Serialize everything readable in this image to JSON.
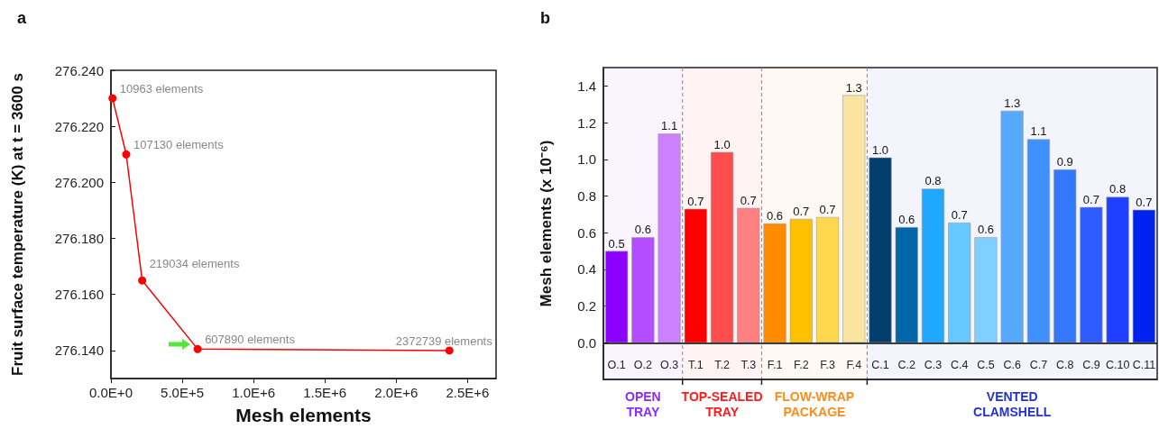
{
  "chart_data": [
    {
      "type": "line",
      "title": "a",
      "xlabel": "Mesh elements",
      "ylabel": "Fruit surface temperature (K) at t = 3600 s",
      "x": [
        10963,
        107130,
        219034,
        607890,
        2372739
      ],
      "series": [
        {
          "color": "#ff0000",
          "values": [
            276.23,
            276.21,
            276.165,
            276.1405,
            276.14
          ]
        }
      ],
      "annotations": [
        {
          "text": "10963 elements",
          "x": 10963,
          "y": 276.23
        },
        {
          "text": "107130 elements",
          "x": 107130,
          "y": 276.21
        },
        {
          "text": "219034 elements",
          "x": 219034,
          "y": 276.165
        },
        {
          "text": "607890 elements",
          "x": 607890,
          "y": 276.1405
        },
        {
          "text": "2372739 elements",
          "x": 2372739,
          "y": 276.14
        }
      ],
      "xlim": [
        0,
        2700000
      ],
      "xticks": [
        {
          "value": 0,
          "label": "0.0E+0"
        },
        {
          "value": 500000,
          "label": "5.0E+5"
        },
        {
          "value": 1000000,
          "label": "1.0E+6"
        },
        {
          "value": 1500000,
          "label": "1.5E+6"
        },
        {
          "value": 2000000,
          "label": "2.0E+6"
        },
        {
          "value": 2500000,
          "label": "2.5E+6"
        }
      ],
      "ylim": [
        276.13,
        276.24
      ],
      "yticks": [
        {
          "value": 276.14,
          "label": "276.140"
        },
        {
          "value": 276.16,
          "label": "276.160"
        },
        {
          "value": 276.18,
          "label": "276.180"
        },
        {
          "value": 276.2,
          "label": "276.200"
        },
        {
          "value": 276.22,
          "label": "276.220"
        },
        {
          "value": 276.24,
          "label": "276.240"
        }
      ],
      "marker": "circle",
      "line_style": "solid",
      "grid": false
    },
    {
      "type": "bar",
      "title": "b",
      "ylabel": "Mesh elements (x 10⁻⁶)",
      "categories": [
        "O.1",
        "O.2",
        "O.3",
        "T.1",
        "T.2",
        "T.3",
        "F.1",
        "F.2",
        "F.3",
        "F.4",
        "C.1",
        "C.2",
        "C.3",
        "C.4",
        "C.5",
        "C.6",
        "C.7",
        "C.8",
        "C.9",
        "C.10",
        "C.11"
      ],
      "values": [
        0.5,
        0.575,
        1.14,
        0.73,
        1.04,
        0.735,
        0.65,
        0.675,
        0.685,
        1.35,
        1.01,
        0.63,
        0.84,
        0.655,
        0.575,
        1.265,
        1.11,
        0.945,
        0.74,
        0.795,
        0.725
      ],
      "value_labels": [
        "0.5",
        "0.6",
        "1.1",
        "0.7",
        "1.0",
        "0.7",
        "0.6",
        "0.7",
        "0.7",
        "1.3",
        "1.0",
        "0.6",
        "0.8",
        "0.7",
        "0.6",
        "1.3",
        "1.1",
        "0.9",
        "0.7",
        "0.8",
        "0.7"
      ],
      "colors": [
        "#8b00ff",
        "#b44cff",
        "#cc80ff",
        "#ff0000",
        "#ff4c4c",
        "#ff8080",
        "#ff8c00",
        "#ffc000",
        "#ffd84d",
        "#f9e4a0",
        "#003f6b",
        "#0066a8",
        "#1ea8ff",
        "#66c8ff",
        "#7fcfff",
        "#55aaff",
        "#4090ff",
        "#3377ff",
        "#2e5cff",
        "#2040ff",
        "#0022ee"
      ],
      "ylim": [
        -0.2,
        1.5
      ],
      "yticks": [
        {
          "value": 0,
          "label": "0.0"
        },
        {
          "value": 0.2,
          "label": "0.2"
        },
        {
          "value": 0.4,
          "label": "0.4"
        },
        {
          "value": 0.6,
          "label": "0.6"
        },
        {
          "value": 0.8,
          "label": "0.8"
        },
        {
          "value": 1.0,
          "label": "1.0"
        },
        {
          "value": 1.2,
          "label": "1.2"
        },
        {
          "value": 1.4,
          "label": "1.4"
        }
      ],
      "ref_lines": [
        {
          "axis": "y",
          "value": 0,
          "color": "#000000"
        }
      ],
      "bands": [
        {
          "axis": "x",
          "from": "O.1",
          "to": "O.3",
          "label": "OPEN\nTRAY",
          "color": "#8b2bff"
        },
        {
          "axis": "x",
          "from": "T.1",
          "to": "T.3",
          "label": "TOP-SEALED\nTRAY",
          "color": "#ff1a1a"
        },
        {
          "axis": "x",
          "from": "F.1",
          "to": "F.4",
          "label": "FLOW-WRAP\nPACKAGE",
          "color": "#ff8c1a"
        },
        {
          "axis": "x",
          "from": "C.1",
          "to": "C.11",
          "label": "VENTED\nCLAMSHELL",
          "color": "#2233cc"
        }
      ],
      "grid": false
    }
  ]
}
